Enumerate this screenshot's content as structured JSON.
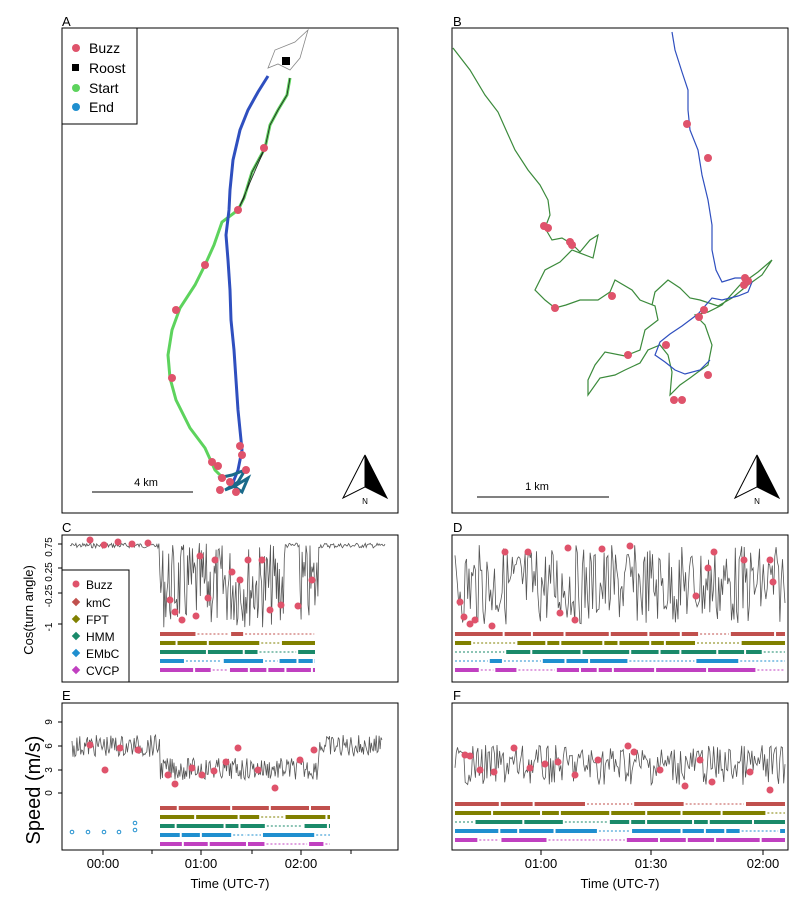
{
  "colors": {
    "buzz": "#DF536B",
    "kmC": "#C0504D",
    "FPT": "#808000",
    "HMM": "#1A8A6A",
    "EMbC": "#1F8FCF",
    "CVCP": "#C040C0",
    "track_green": "#5DD35D",
    "track_blue": "#2F4FBF",
    "line": "#555555"
  },
  "panels": {
    "A": {
      "label": "A",
      "scalebar": "4 km",
      "north": "N",
      "legend": [
        {
          "label": "Buzz",
          "marker": "circle",
          "color": "#DF536B"
        },
        {
          "label": "Roost",
          "marker": "square",
          "color": "#000000"
        },
        {
          "label": "Start",
          "marker": "circle",
          "color": "#5DD35D"
        },
        {
          "label": "End",
          "marker": "circle",
          "color": "#1F8FCF"
        }
      ]
    },
    "B": {
      "label": "B",
      "scalebar": "1 km",
      "north": "N"
    },
    "C": {
      "label": "C",
      "ylabel": "Cos(turn angle)",
      "yticks": [
        "0.75",
        "0.25",
        "-0.25",
        "-1"
      ],
      "legend": [
        {
          "label": "Buzz",
          "color": "#DF536B"
        },
        {
          "label": "kmC",
          "color": "#C0504D"
        },
        {
          "label": "FPT",
          "color": "#808000"
        },
        {
          "label": "HMM",
          "color": "#1A8A6A"
        },
        {
          "label": "EMbC",
          "color": "#1F8FCF"
        },
        {
          "label": "CVCP",
          "color": "#C040C0"
        }
      ]
    },
    "D": {
      "label": "D"
    },
    "E": {
      "label": "E",
      "ylabel": "Speed (m/s)",
      "yticks": [
        "9",
        "6",
        "3",
        "0"
      ],
      "xticks": [
        "00:00",
        "01:00",
        "02:00"
      ],
      "xlabel": "Time (UTC-7)"
    },
    "F": {
      "label": "F",
      "xticks": [
        "01:00",
        "01:30",
        "02:00"
      ],
      "xlabel": "Time (UTC-7)"
    }
  },
  "chart_data": [
    {
      "type": "line",
      "panel": "C",
      "ylabel": "Cos(turn angle)",
      "ylim": [
        -1.15,
        1.0
      ],
      "x_unit": "hours since 00:00 (UTC-7)",
      "xlim": [
        -0.55,
        2.9
      ],
      "series": [
        {
          "name": "Buzz"
        }
      ],
      "description_text": ""
    },
    {
      "type": "line",
      "panel": "E",
      "ylabel": "Speed (m/s)",
      "ylim": [
        -1,
        11
      ],
      "xticks": [
        "00:00",
        "01:00",
        "02:00"
      ],
      "xlabel": "Time (UTC-7)"
    },
    {
      "type": "line",
      "panel": "F",
      "xticks": [
        "01:00",
        "01:30",
        "02:00"
      ],
      "xlabel": "Time (UTC-7)"
    }
  ]
}
